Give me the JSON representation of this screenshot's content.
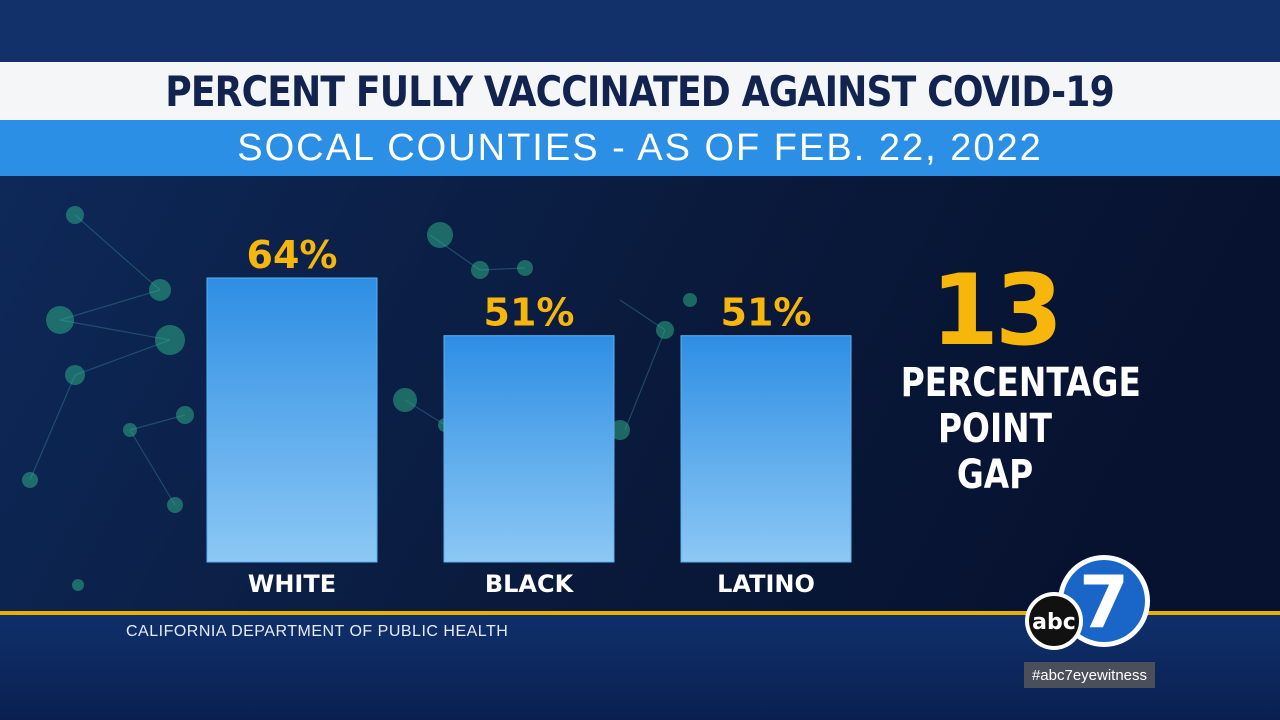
{
  "header": {
    "title": "PERCENT FULLY VACCINATED AGAINST COVID-19",
    "subtitle": "SOCAL COUNTIES - AS OF FEB. 22, 2022"
  },
  "chart_data": {
    "type": "bar",
    "title": "PERCENT FULLY VACCINATED AGAINST COVID-19",
    "subtitle": "SOCAL COUNTIES - AS OF FEB. 22, 2022",
    "categories": [
      "WHITE",
      "BLACK",
      "LATINO"
    ],
    "values": [
      64,
      51,
      51
    ],
    "value_labels": [
      "64%",
      "51%",
      "51%"
    ],
    "xlabel": "",
    "ylabel": "",
    "ylim": [
      0,
      100
    ],
    "grid": false,
    "legend": "none",
    "colors": {
      "bar_top": "#2e8ee4",
      "bar_bottom": "#8cc8f4",
      "value_label": "#f6b60c"
    }
  },
  "callout": {
    "number": "13",
    "lines": [
      "PERCENTAGE",
      "POINT",
      "GAP"
    ]
  },
  "footer": {
    "source": "CALIFORNIA DEPARTMENT OF PUBLIC HEALTH",
    "hashtag": "#abc7eyewitness"
  },
  "logo": {
    "text": "abc",
    "numeral": "7"
  }
}
